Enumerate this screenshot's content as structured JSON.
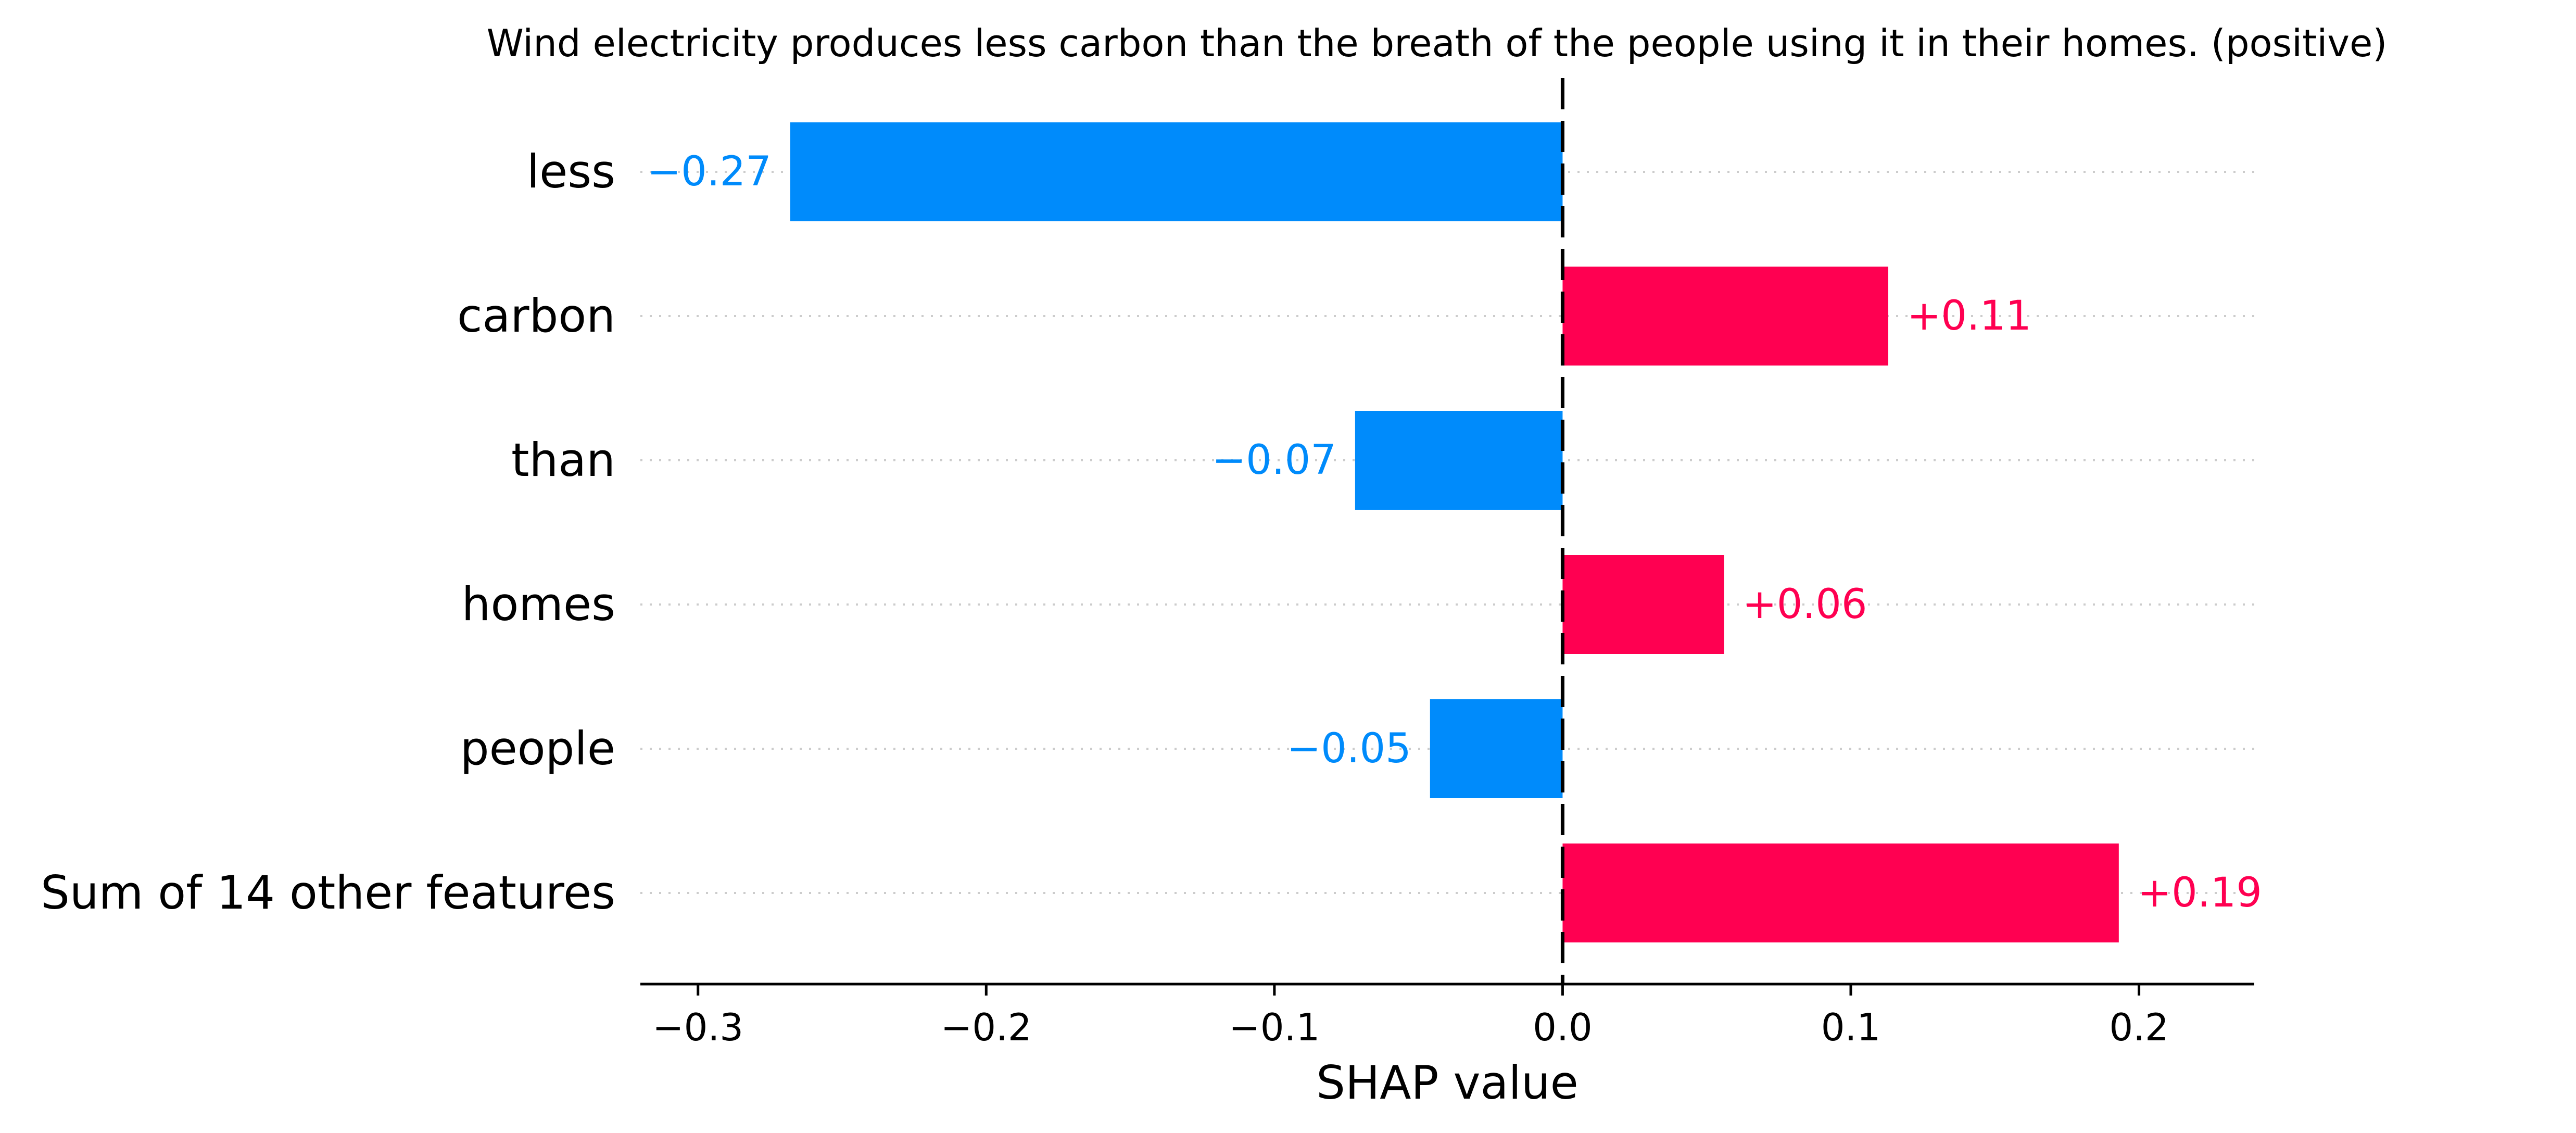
{
  "chart_data": {
    "type": "bar",
    "orientation": "horizontal",
    "title": "Wind electricity produces less carbon than the breath of the people using it in their homes. (positive)",
    "xlabel": "SHAP value",
    "ylabel": "",
    "categories": [
      "less",
      "carbon",
      "than",
      "homes",
      "people",
      "Sum of 14 other features"
    ],
    "values": [
      -0.268,
      0.113,
      -0.072,
      0.056,
      -0.046,
      0.193
    ],
    "value_labels": [
      "−0.27",
      "+0.11",
      "−0.07",
      "+0.06",
      "−0.05",
      "+0.19"
    ],
    "xlim": [
      -0.32,
      0.24
    ],
    "xticks": [
      -0.3,
      -0.2,
      -0.1,
      0.0,
      0.1,
      0.2
    ],
    "xtick_labels": [
      "−0.3",
      "−0.2",
      "−0.1",
      "0.0",
      "0.1",
      "0.2"
    ],
    "grid": "dotted horizontal guide lines per row",
    "legend": "none",
    "colors": {
      "positive": "#ff0051",
      "negative": "#008bfb",
      "zero_line": "#000000",
      "guide": "#cccccc",
      "axis": "#000000"
    }
  }
}
